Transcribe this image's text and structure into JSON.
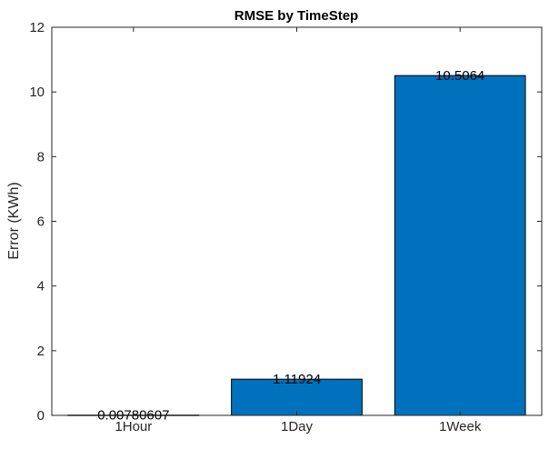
{
  "chart_data": {
    "type": "bar",
    "title": "RMSE by TimeStep",
    "xlabel": "",
    "ylabel": "Error (KWh)",
    "categories": [
      "1Hour",
      "1Day",
      "1Week"
    ],
    "values": [
      0.00780607,
      1.11924,
      10.5064
    ],
    "data_labels": [
      "0.00780607",
      "1.11924",
      "10.5064"
    ],
    "ylim": [
      0,
      12
    ],
    "yticks": [
      0,
      2,
      4,
      6,
      8,
      10,
      12
    ],
    "grid": false,
    "bar_color": "#0072BD",
    "bar_edge_color": "#000000"
  }
}
